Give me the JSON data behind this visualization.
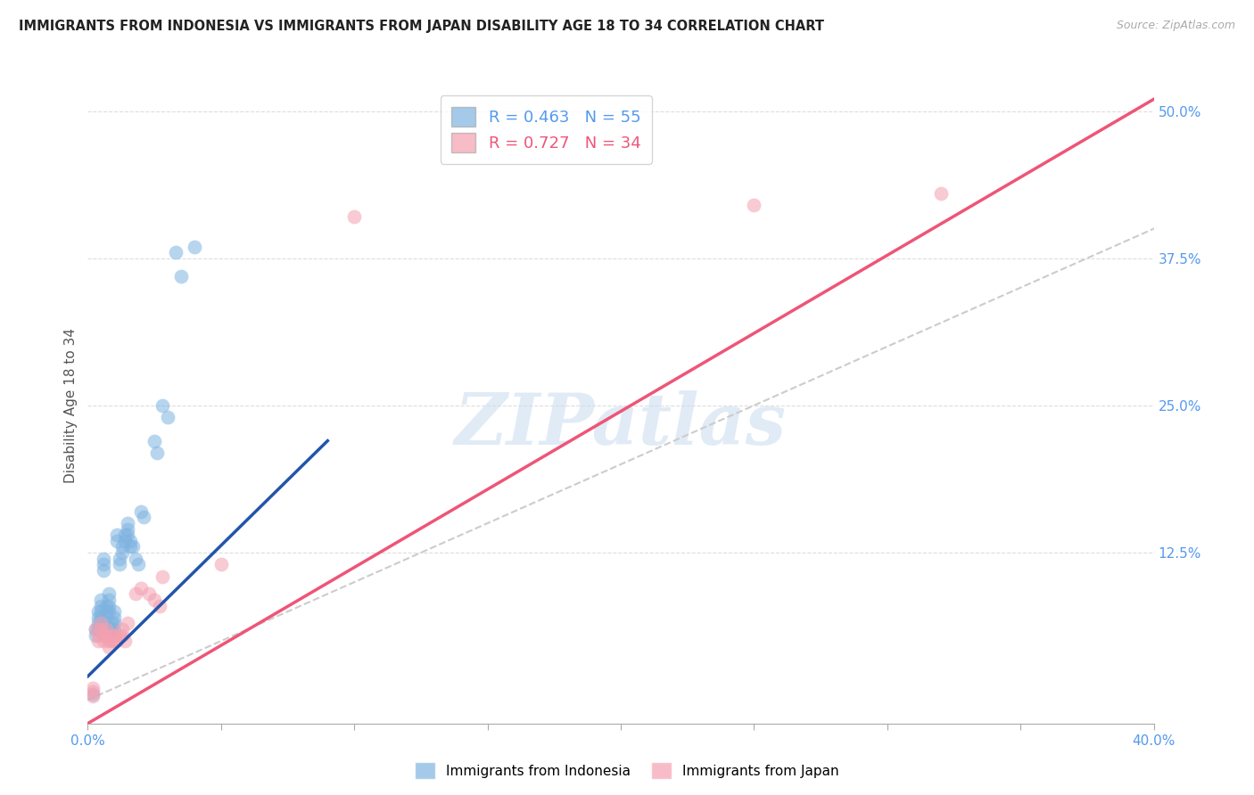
{
  "title": "IMMIGRANTS FROM INDONESIA VS IMMIGRANTS FROM JAPAN DISABILITY AGE 18 TO 34 CORRELATION CHART",
  "source": "Source: ZipAtlas.com",
  "ylabel": "Disability Age 18 to 34",
  "xlim": [
    0.0,
    0.4
  ],
  "ylim": [
    -0.02,
    0.52
  ],
  "xticks": [
    0.0,
    0.05,
    0.1,
    0.15,
    0.2,
    0.25,
    0.3,
    0.35,
    0.4
  ],
  "xticklabels_show": [
    "0.0%",
    "",
    "",
    "",
    "",
    "",
    "",
    "",
    "40.0%"
  ],
  "yticks_right": [
    0.0,
    0.125,
    0.25,
    0.375,
    0.5
  ],
  "yticklabels_right": [
    "",
    "12.5%",
    "25.0%",
    "37.5%",
    "50.0%"
  ],
  "indonesia_color": "#7EB3E0",
  "japan_color": "#F4A0B0",
  "indonesia_R": 0.463,
  "indonesia_N": 55,
  "japan_R": 0.727,
  "japan_N": 34,
  "indonesia_line_color": "#2255AA",
  "japan_line_color": "#EE5577",
  "diagonal_color": "#CCCCCC",
  "watermark": "ZIPatlas",
  "watermark_color": "#C8DCF0",
  "indonesia_x": [
    0.002,
    0.003,
    0.003,
    0.004,
    0.004,
    0.004,
    0.004,
    0.005,
    0.005,
    0.005,
    0.005,
    0.005,
    0.006,
    0.006,
    0.006,
    0.007,
    0.007,
    0.007,
    0.007,
    0.008,
    0.008,
    0.008,
    0.008,
    0.009,
    0.009,
    0.009,
    0.01,
    0.01,
    0.01,
    0.01,
    0.011,
    0.011,
    0.012,
    0.012,
    0.013,
    0.013,
    0.014,
    0.014,
    0.015,
    0.015,
    0.015,
    0.016,
    0.016,
    0.017,
    0.018,
    0.019,
    0.02,
    0.021,
    0.025,
    0.026,
    0.028,
    0.03,
    0.033,
    0.035,
    0.04
  ],
  "indonesia_y": [
    0.005,
    0.06,
    0.055,
    0.075,
    0.07,
    0.065,
    0.06,
    0.085,
    0.08,
    0.075,
    0.07,
    0.065,
    0.12,
    0.115,
    0.11,
    0.08,
    0.075,
    0.07,
    0.065,
    0.09,
    0.085,
    0.08,
    0.075,
    0.065,
    0.06,
    0.055,
    0.075,
    0.07,
    0.065,
    0.06,
    0.14,
    0.135,
    0.12,
    0.115,
    0.13,
    0.125,
    0.14,
    0.135,
    0.15,
    0.145,
    0.14,
    0.135,
    0.13,
    0.13,
    0.12,
    0.115,
    0.16,
    0.155,
    0.22,
    0.21,
    0.25,
    0.24,
    0.38,
    0.36,
    0.385
  ],
  "japan_x": [
    0.002,
    0.002,
    0.002,
    0.003,
    0.004,
    0.004,
    0.005,
    0.005,
    0.006,
    0.006,
    0.007,
    0.007,
    0.008,
    0.008,
    0.009,
    0.009,
    0.01,
    0.01,
    0.011,
    0.012,
    0.013,
    0.013,
    0.014,
    0.015,
    0.018,
    0.02,
    0.023,
    0.025,
    0.027,
    0.028,
    0.05,
    0.1,
    0.25,
    0.32
  ],
  "japan_y": [
    0.01,
    0.007,
    0.003,
    0.06,
    0.055,
    0.05,
    0.065,
    0.06,
    0.055,
    0.05,
    0.06,
    0.055,
    0.05,
    0.045,
    0.055,
    0.05,
    0.055,
    0.05,
    0.05,
    0.055,
    0.06,
    0.055,
    0.05,
    0.065,
    0.09,
    0.095,
    0.09,
    0.085,
    0.08,
    0.105,
    0.115,
    0.41,
    0.42,
    0.43
  ],
  "indo_line_x": [
    0.0,
    0.09
  ],
  "indo_line_y": [
    0.02,
    0.22
  ],
  "japan_line_x": [
    0.0,
    0.4
  ],
  "japan_line_y": [
    -0.02,
    0.51
  ]
}
